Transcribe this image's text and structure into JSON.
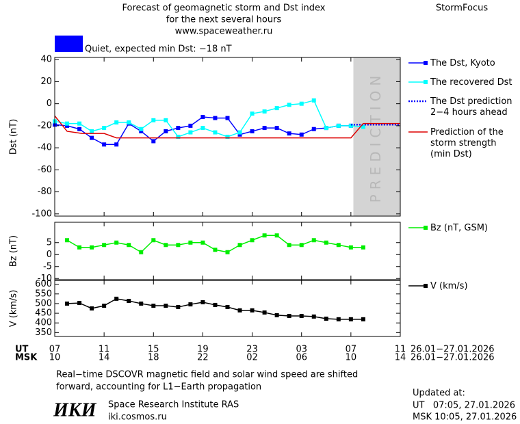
{
  "header": {
    "title_lines": [
      "Forecast of geomagnetic storm and Dst index",
      "for the next several hours",
      "www.spaceweather.ru"
    ],
    "brand": "StormFocus"
  },
  "status": {
    "text": "Quiet, expected min Dst: −18 nT",
    "color": "#0000ff"
  },
  "chart_data": [
    {
      "type": "line",
      "y_label": "Dst (nT)",
      "xlim": [
        0,
        28
      ],
      "ylim": [
        -102,
        42
      ],
      "yticks": [
        40,
        20,
        0,
        -20,
        -40,
        -60,
        -80,
        -100
      ],
      "prediction_zone": [
        24.2,
        28
      ],
      "prediction_label": "PREDICTION",
      "series": [
        {
          "name": "The Dst, Kyoto",
          "color": "#0000ff",
          "marker": "square",
          "x": [
            0,
            1,
            2,
            3,
            4,
            5,
            6,
            7,
            8,
            9,
            10,
            11,
            12,
            13,
            14,
            15,
            16,
            17,
            18,
            19,
            20,
            21,
            22,
            23,
            24
          ],
          "values": [
            -19,
            -20,
            -23,
            -31,
            -37,
            -37,
            -18,
            -25,
            -34,
            -25,
            -22,
            -20,
            -12,
            -13,
            -13,
            -28,
            -25,
            -22,
            -22,
            -27,
            -28,
            -23,
            -22,
            -20,
            -20
          ]
        },
        {
          "name": "The recovered Dst",
          "color": "#00ffff",
          "marker": "square",
          "x": [
            0,
            1,
            2,
            3,
            4,
            5,
            6,
            7,
            8,
            9,
            10,
            11,
            12,
            13,
            14,
            15,
            16,
            17,
            18,
            19,
            20,
            21,
            22,
            23,
            24,
            25
          ],
          "values": [
            -16,
            -18,
            -18,
            -25,
            -22,
            -17,
            -17,
            -23,
            -15,
            -15,
            -30,
            -26,
            -22,
            -26,
            -30,
            -26,
            -9,
            -7,
            -4,
            -1,
            0,
            3,
            -22,
            -20,
            -20,
            -21
          ]
        },
        {
          "name": "The Dst prediction\n2−4 hours ahead",
          "color": "#0000ff",
          "dash": true,
          "x": [
            24,
            25,
            26,
            27,
            28
          ],
          "values": [
            -19,
            -19,
            -19,
            -19,
            -19
          ]
        },
        {
          "name": "Prediction of the\nstorm strength\n(min Dst)",
          "color": "#dd0000",
          "x": [
            0,
            1,
            2.2,
            4,
            5,
            24,
            25,
            28
          ],
          "values": [
            -11,
            -25,
            -27,
            -27,
            -31,
            -31,
            -18,
            -18
          ]
        }
      ]
    },
    {
      "type": "line",
      "y_label": "Bz (nT)",
      "xlim": [
        0,
        28
      ],
      "ylim": [
        -10.5,
        13.5
      ],
      "yticks": [
        5,
        0,
        -5,
        -10
      ],
      "series": [
        {
          "name": "Bz (nT, GSM)",
          "color": "#00ee00",
          "marker": "square",
          "x": [
            1,
            2,
            3,
            4,
            5,
            6,
            7,
            8,
            9,
            10,
            11,
            12,
            13,
            14,
            15,
            16,
            17,
            18,
            19,
            20,
            21,
            22,
            23,
            24,
            25
          ],
          "values": [
            6,
            3,
            3,
            4,
            5,
            4,
            1,
            6,
            4,
            4,
            5,
            5,
            2,
            1,
            4,
            6,
            8,
            8,
            4,
            4,
            6,
            5,
            4,
            3,
            3
          ]
        }
      ]
    },
    {
      "type": "line",
      "y_label": "V (km/s)",
      "xlim": [
        0,
        28
      ],
      "ylim": [
        330,
        620
      ],
      "yticks": [
        600,
        550,
        500,
        450,
        400,
        350
      ],
      "xticks": [
        {
          "value": 0,
          "label": "07"
        },
        {
          "value": 4,
          "label": "11"
        },
        {
          "value": 8,
          "label": "15"
        },
        {
          "value": 12,
          "label": "19"
        },
        {
          "value": 16,
          "label": "23"
        },
        {
          "value": 20,
          "label": "03"
        },
        {
          "value": 24,
          "label": "07"
        },
        {
          "value": 28,
          "label": "11"
        }
      ],
      "xticks_msk": [
        {
          "value": 0,
          "label": "10"
        },
        {
          "value": 4,
          "label": "14"
        },
        {
          "value": 8,
          "label": "18"
        },
        {
          "value": 12,
          "label": "22"
        },
        {
          "value": 16,
          "label": "02"
        },
        {
          "value": 20,
          "label": "06"
        },
        {
          "value": 24,
          "label": "10"
        },
        {
          "value": 28,
          "label": "14"
        }
      ],
      "xtick_row_labels": [
        "UT",
        "MSK"
      ],
      "date_ranges": [
        "26.01−27.01.2026",
        "26.01−27.01.2026"
      ],
      "series": [
        {
          "name": "V (km/s)",
          "color": "#000000",
          "marker": "square",
          "x": [
            1,
            2,
            3,
            4,
            5,
            6,
            7,
            8,
            9,
            10,
            11,
            12,
            13,
            14,
            15,
            16,
            17,
            18,
            19,
            20,
            21,
            22,
            23,
            24,
            25
          ],
          "values": [
            500,
            503,
            475,
            489,
            525,
            514,
            500,
            489,
            489,
            482,
            496,
            507,
            493,
            482,
            465,
            465,
            454,
            440,
            436,
            436,
            433,
            422,
            419,
            419,
            419
          ]
        }
      ]
    }
  ],
  "notes": [
    "Real−time DSCOVR magnetic field and solar wind speed are shifted",
    "forward, accounting for L1−Earth propagation"
  ],
  "institute": {
    "logo": "ИКИ",
    "name": "Space Research Institute RAS",
    "url": "iki.cosmos.ru"
  },
  "updated": {
    "title": "Updated at:",
    "lines": [
      "UT   07:05, 27.01.2026",
      "MSK 10:05, 27.01.2026"
    ]
  }
}
